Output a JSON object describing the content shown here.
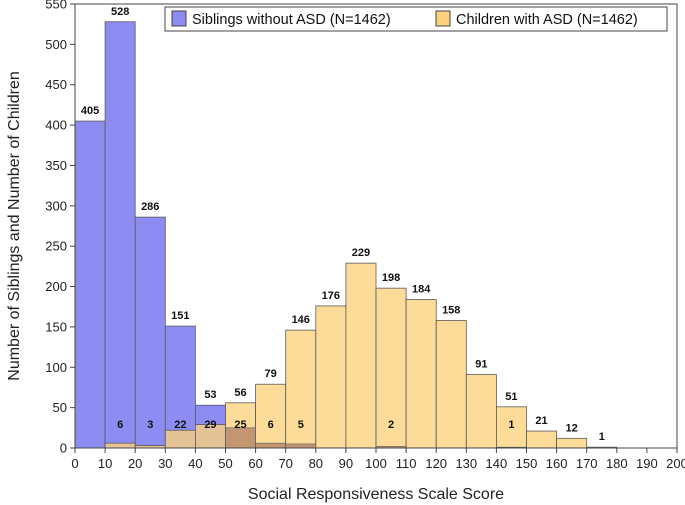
{
  "chart_data": {
    "type": "bar",
    "xlabel": "Social Responsiveness Scale Score",
    "ylabel": "Number of Siblings and Number of Children",
    "xlim": [
      0,
      200
    ],
    "ylim": [
      0,
      550
    ],
    "bin_width": 10,
    "x_ticks": [
      0,
      10,
      20,
      30,
      40,
      50,
      60,
      70,
      80,
      90,
      100,
      110,
      120,
      130,
      140,
      150,
      160,
      170,
      180,
      190,
      200
    ],
    "y_ticks": [
      0,
      50,
      100,
      150,
      200,
      250,
      300,
      350,
      400,
      450,
      500,
      550
    ],
    "grid": false,
    "legend_position": "top-right",
    "series": [
      {
        "name": "Siblings without ASD (N=1462)",
        "color": "#8c8cf2",
        "bin_starts": [
          0,
          10,
          20,
          30,
          40
        ],
        "values": [
          405,
          528,
          286,
          151,
          53
        ]
      },
      {
        "name": "Children with ASD (N=1462)",
        "color": "#fdd27e",
        "bin_starts": [
          10,
          20,
          30,
          40,
          50,
          60,
          70,
          80,
          90,
          100,
          110,
          120,
          130,
          140,
          150,
          160,
          170
        ],
        "values": [
          6,
          3,
          22,
          29,
          56,
          79,
          146,
          176,
          229,
          198,
          184,
          158,
          91,
          51,
          21,
          12,
          1
        ]
      }
    ],
    "overlap_labels": [
      {
        "x": 10,
        "label": "6"
      },
      {
        "x": 20,
        "label": "3"
      },
      {
        "x": 30,
        "label": "22"
      },
      {
        "x": 40,
        "label": "29"
      },
      {
        "x": 50,
        "label": "25"
      },
      {
        "x": 60,
        "label": "6"
      },
      {
        "x": 70,
        "label": "5"
      },
      {
        "x": 100,
        "label": "2"
      },
      {
        "x": 140,
        "label": "1"
      }
    ],
    "overlap_values": [
      {
        "x": 50,
        "value": 25
      },
      {
        "x": 60,
        "value": 6
      },
      {
        "x": 70,
        "value": 5
      },
      {
        "x": 100,
        "value": 2
      },
      {
        "x": 140,
        "value": 1
      }
    ]
  }
}
